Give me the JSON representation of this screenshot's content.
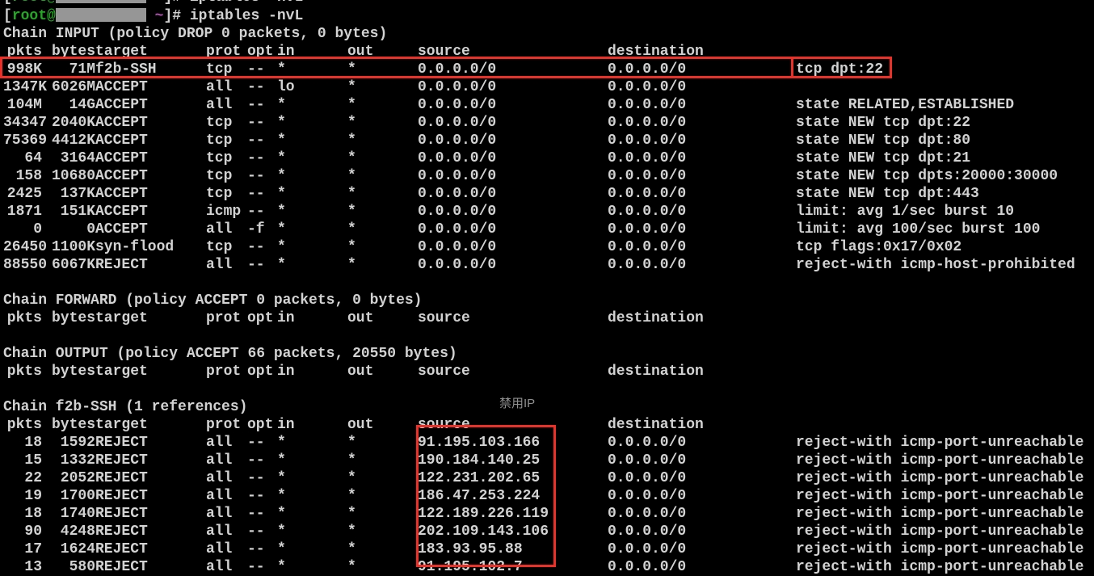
{
  "prompt": {
    "bracket": "[",
    "user_at": "root@",
    "cwd_display": " ~",
    "suffix": "]# ",
    "command": "iptables -nvL"
  },
  "annotation": "禁用IP",
  "columns": {
    "pkts": "pkts",
    "bytes": "bytes",
    "target": "target",
    "prot": "prot",
    "opt": "opt",
    "in": "in",
    "out": "out",
    "source": "source",
    "destination": "destination"
  },
  "chains": [
    {
      "title": "Chain INPUT (policy DROP 0 packets, 0 bytes)",
      "rows": [
        {
          "pkts": "998K",
          "bytes": "71M",
          "target": "f2b-SSH",
          "prot": "tcp",
          "opt": "--",
          "in": "*",
          "out": "*",
          "source": "0.0.0.0/0",
          "destination": "0.0.0.0/0",
          "extra": "tcp dpt:22"
        },
        {
          "pkts": "1347K",
          "bytes": "6026M",
          "target": "ACCEPT",
          "prot": "all",
          "opt": "--",
          "in": "lo",
          "out": "*",
          "source": "0.0.0.0/0",
          "destination": "0.0.0.0/0",
          "extra": ""
        },
        {
          "pkts": "104M",
          "bytes": "14G",
          "target": "ACCEPT",
          "prot": "all",
          "opt": "--",
          "in": "*",
          "out": "*",
          "source": "0.0.0.0/0",
          "destination": "0.0.0.0/0",
          "extra": "state RELATED,ESTABLISHED"
        },
        {
          "pkts": "34347",
          "bytes": "2040K",
          "target": "ACCEPT",
          "prot": "tcp",
          "opt": "--",
          "in": "*",
          "out": "*",
          "source": "0.0.0.0/0",
          "destination": "0.0.0.0/0",
          "extra": "state NEW tcp dpt:22"
        },
        {
          "pkts": "75369",
          "bytes": "4412K",
          "target": "ACCEPT",
          "prot": "tcp",
          "opt": "--",
          "in": "*",
          "out": "*",
          "source": "0.0.0.0/0",
          "destination": "0.0.0.0/0",
          "extra": "state NEW tcp dpt:80"
        },
        {
          "pkts": "64",
          "bytes": "3164",
          "target": "ACCEPT",
          "prot": "tcp",
          "opt": "--",
          "in": "*",
          "out": "*",
          "source": "0.0.0.0/0",
          "destination": "0.0.0.0/0",
          "extra": "state NEW tcp dpt:21"
        },
        {
          "pkts": "158",
          "bytes": "10680",
          "target": "ACCEPT",
          "prot": "tcp",
          "opt": "--",
          "in": "*",
          "out": "*",
          "source": "0.0.0.0/0",
          "destination": "0.0.0.0/0",
          "extra": "state NEW tcp dpts:20000:30000"
        },
        {
          "pkts": "2425",
          "bytes": "137K",
          "target": "ACCEPT",
          "prot": "tcp",
          "opt": "--",
          "in": "*",
          "out": "*",
          "source": "0.0.0.0/0",
          "destination": "0.0.0.0/0",
          "extra": "state NEW tcp dpt:443"
        },
        {
          "pkts": "1871",
          "bytes": "151K",
          "target": "ACCEPT",
          "prot": "icmp",
          "opt": "--",
          "in": "*",
          "out": "*",
          "source": "0.0.0.0/0",
          "destination": "0.0.0.0/0",
          "extra": "limit: avg 1/sec burst 10"
        },
        {
          "pkts": "0",
          "bytes": "0",
          "target": "ACCEPT",
          "prot": "all",
          "opt": "-f",
          "in": "*",
          "out": "*",
          "source": "0.0.0.0/0",
          "destination": "0.0.0.0/0",
          "extra": "limit: avg 100/sec burst 100"
        },
        {
          "pkts": "26450",
          "bytes": "1100K",
          "target": "syn-flood",
          "prot": "tcp",
          "opt": "--",
          "in": "*",
          "out": "*",
          "source": "0.0.0.0/0",
          "destination": "0.0.0.0/0",
          "extra": "tcp flags:0x17/0x02"
        },
        {
          "pkts": "88550",
          "bytes": "6067K",
          "target": "REJECT",
          "prot": "all",
          "opt": "--",
          "in": "*",
          "out": "*",
          "source": "0.0.0.0/0",
          "destination": "0.0.0.0/0",
          "extra": "reject-with icmp-host-prohibited"
        }
      ]
    },
    {
      "title": "Chain FORWARD (policy ACCEPT 0 packets, 0 bytes)",
      "rows": []
    },
    {
      "title": "Chain OUTPUT (policy ACCEPT 66 packets, 20550 bytes)",
      "rows": []
    },
    {
      "title": "Chain f2b-SSH (1 references)",
      "rows": [
        {
          "pkts": "18",
          "bytes": "1592",
          "target": "REJECT",
          "prot": "all",
          "opt": "--",
          "in": "*",
          "out": "*",
          "source": "91.195.103.166",
          "destination": "0.0.0.0/0",
          "extra": "reject-with icmp-port-unreachable"
        },
        {
          "pkts": "15",
          "bytes": "1332",
          "target": "REJECT",
          "prot": "all",
          "opt": "--",
          "in": "*",
          "out": "*",
          "source": "190.184.140.25",
          "destination": "0.0.0.0/0",
          "extra": "reject-with icmp-port-unreachable"
        },
        {
          "pkts": "22",
          "bytes": "2052",
          "target": "REJECT",
          "prot": "all",
          "opt": "--",
          "in": "*",
          "out": "*",
          "source": "122.231.202.65",
          "destination": "0.0.0.0/0",
          "extra": "reject-with icmp-port-unreachable"
        },
        {
          "pkts": "19",
          "bytes": "1700",
          "target": "REJECT",
          "prot": "all",
          "opt": "--",
          "in": "*",
          "out": "*",
          "source": "186.47.253.224",
          "destination": "0.0.0.0/0",
          "extra": "reject-with icmp-port-unreachable"
        },
        {
          "pkts": "18",
          "bytes": "1740",
          "target": "REJECT",
          "prot": "all",
          "opt": "--",
          "in": "*",
          "out": "*",
          "source": "122.189.226.119",
          "destination": "0.0.0.0/0",
          "extra": "reject-with icmp-port-unreachable"
        },
        {
          "pkts": "90",
          "bytes": "4248",
          "target": "REJECT",
          "prot": "all",
          "opt": "--",
          "in": "*",
          "out": "*",
          "source": "202.109.143.106",
          "destination": "0.0.0.0/0",
          "extra": "reject-with icmp-port-unreachable"
        },
        {
          "pkts": "17",
          "bytes": "1624",
          "target": "REJECT",
          "prot": "all",
          "opt": "--",
          "in": "*",
          "out": "*",
          "source": "183.93.95.88",
          "destination": "0.0.0.0/0",
          "extra": "reject-with icmp-port-unreachable"
        },
        {
          "pkts": "13",
          "bytes": "580",
          "target": "REJECT",
          "prot": "all",
          "opt": "--",
          "in": "*",
          "out": "*",
          "source": "91.195.102.7",
          "destination": "0.0.0.0/0",
          "extra": "reject-with icmp-port-unreachable"
        }
      ]
    }
  ],
  "colors": {
    "background": "#000000",
    "text": "#d2d2d2",
    "prompt_green": "#22a822",
    "tilde_magenta": "#b050b0",
    "highlight_red": "#ef2f26",
    "redaction_gray": "#969696",
    "annotation_gray": "#8f8f8f"
  }
}
